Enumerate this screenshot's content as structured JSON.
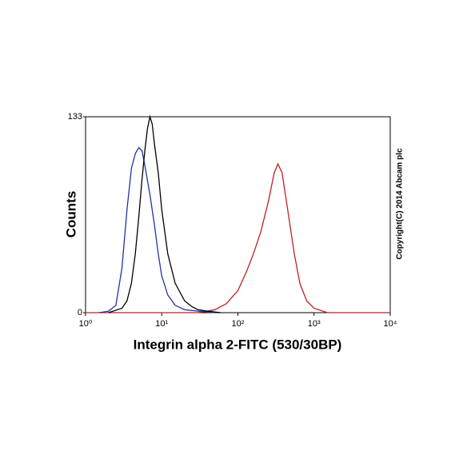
{
  "chart_data": {
    "type": "line",
    "xlabel": "Integrin alpha 2-FITC (530/30BP)",
    "ylabel": "Counts",
    "annotation": "Copyright(C) 2014 Abcam plc",
    "x_log": true,
    "xlim": [
      1,
      10000
    ],
    "ylim": [
      0,
      133
    ],
    "xticks": [
      {
        "value": 1,
        "label": "10⁰"
      },
      {
        "value": 10,
        "label": "10¹"
      },
      {
        "value": 100,
        "label": "10²"
      },
      {
        "value": 1000,
        "label": "10³"
      },
      {
        "value": 10000,
        "label": "10⁴"
      }
    ],
    "yticks": [
      0,
      133
    ],
    "series": [
      {
        "color": "#c02020",
        "x": [
          1,
          10,
          30,
          50,
          70,
          100,
          130,
          160,
          200,
          250,
          300,
          335,
          380,
          450,
          550,
          650,
          800,
          1000,
          1500,
          10000
        ],
        "values": [
          0,
          0,
          0,
          2,
          6,
          15,
          28,
          40,
          55,
          75,
          95,
          101,
          95,
          70,
          40,
          20,
          8,
          3,
          0,
          0
        ]
      },
      {
        "color": "#2233aa",
        "x": [
          1.5,
          2,
          2.5,
          3,
          3.5,
          4,
          4.5,
          5,
          5.5,
          6,
          7,
          8,
          9,
          10,
          12,
          15,
          20,
          30,
          50
        ],
        "values": [
          0,
          1,
          5,
          30,
          70,
          98,
          108,
          112,
          110,
          100,
          80,
          60,
          40,
          25,
          12,
          5,
          2,
          1,
          0
        ]
      },
      {
        "color": "#000000",
        "x": [
          2,
          3,
          3.5,
          4,
          4.5,
          5,
          5.5,
          6,
          6.5,
          7,
          7.5,
          8,
          9,
          10,
          12,
          15,
          20,
          25,
          30,
          40,
          60
        ],
        "values": [
          0,
          3,
          8,
          20,
          40,
          65,
          90,
          110,
          125,
          133,
          128,
          115,
          95,
          70,
          40,
          20,
          8,
          4,
          2,
          1,
          0
        ]
      }
    ]
  }
}
